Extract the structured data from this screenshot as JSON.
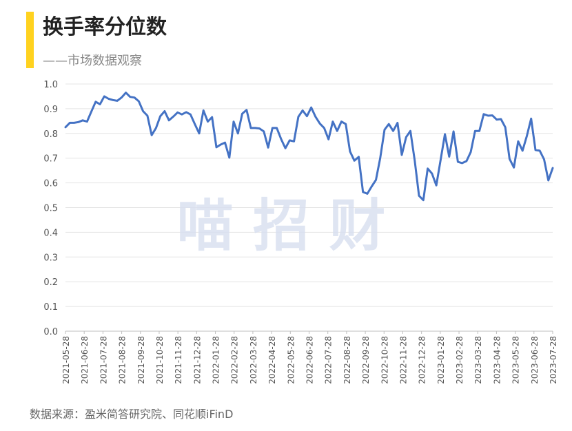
{
  "header": {
    "title": "换手率分位数",
    "subtitle": "——市场数据观察",
    "accent_color": "#ffd21f"
  },
  "watermark": "喵 招 财",
  "footer": {
    "source": "数据来源：盈米简答研究院、同花顺iFinD"
  },
  "chart_data": {
    "type": "line",
    "title": "换手率分位数",
    "xlabel": "",
    "ylabel": "",
    "ylim": [
      0,
      1.0
    ],
    "y_ticks": [
      "0.0",
      "0.1",
      "0.2",
      "0.3",
      "0.4",
      "0.5",
      "0.6",
      "0.7",
      "0.8",
      "0.9",
      "1.0"
    ],
    "x_tick_labels": [
      "2021-05-28",
      "2021-06-28",
      "2021-07-28",
      "2021-08-28",
      "2021-09-28",
      "2021-10-28",
      "2021-11-28",
      "2021-12-28",
      "2022-01-28",
      "2022-02-28",
      "2022-03-28",
      "2022-04-28",
      "2022-05-28",
      "2022-06-28",
      "2022-07-28",
      "2022-08-28",
      "2022-09-28",
      "2022-10-28",
      "2022-11-28",
      "2022-12-28",
      "2023-01-28",
      "2023-02-28",
      "2023-03-28",
      "2023-04-28",
      "2023-05-28",
      "2023-06-28",
      "2023-07-28"
    ],
    "grid": true,
    "line_color": "#4472c4",
    "series": [
      {
        "values": [
          0.825,
          0.843,
          0.843,
          0.846,
          0.853,
          0.848,
          0.888,
          0.928,
          0.918,
          0.95,
          0.94,
          0.935,
          0.932,
          0.945,
          0.965,
          0.948,
          0.945,
          0.93,
          0.89,
          0.872,
          0.793,
          0.822,
          0.87,
          0.89,
          0.853,
          0.868,
          0.885,
          0.877,
          0.886,
          0.877,
          0.838,
          0.8,
          0.893,
          0.848,
          0.866,
          0.744,
          0.755,
          0.763,
          0.702,
          0.848,
          0.8,
          0.88,
          0.895,
          0.822,
          0.822,
          0.82,
          0.808,
          0.743,
          0.822,
          0.822,
          0.778,
          0.74,
          0.772,
          0.768,
          0.867,
          0.893,
          0.87,
          0.905,
          0.867,
          0.84,
          0.822,
          0.776,
          0.848,
          0.81,
          0.848,
          0.838,
          0.727,
          0.69,
          0.705,
          0.563,
          0.556,
          0.585,
          0.612,
          0.7,
          0.815,
          0.838,
          0.81,
          0.843,
          0.713,
          0.785,
          0.81,
          0.69,
          0.548,
          0.53,
          0.658,
          0.638,
          0.59,
          0.692,
          0.797,
          0.706,
          0.808,
          0.685,
          0.68,
          0.688,
          0.725,
          0.81,
          0.81,
          0.878,
          0.872,
          0.873,
          0.856,
          0.858,
          0.825,
          0.697,
          0.662,
          0.768,
          0.73,
          0.79,
          0.86,
          0.733,
          0.73,
          0.695,
          0.61,
          0.66
        ]
      }
    ]
  }
}
